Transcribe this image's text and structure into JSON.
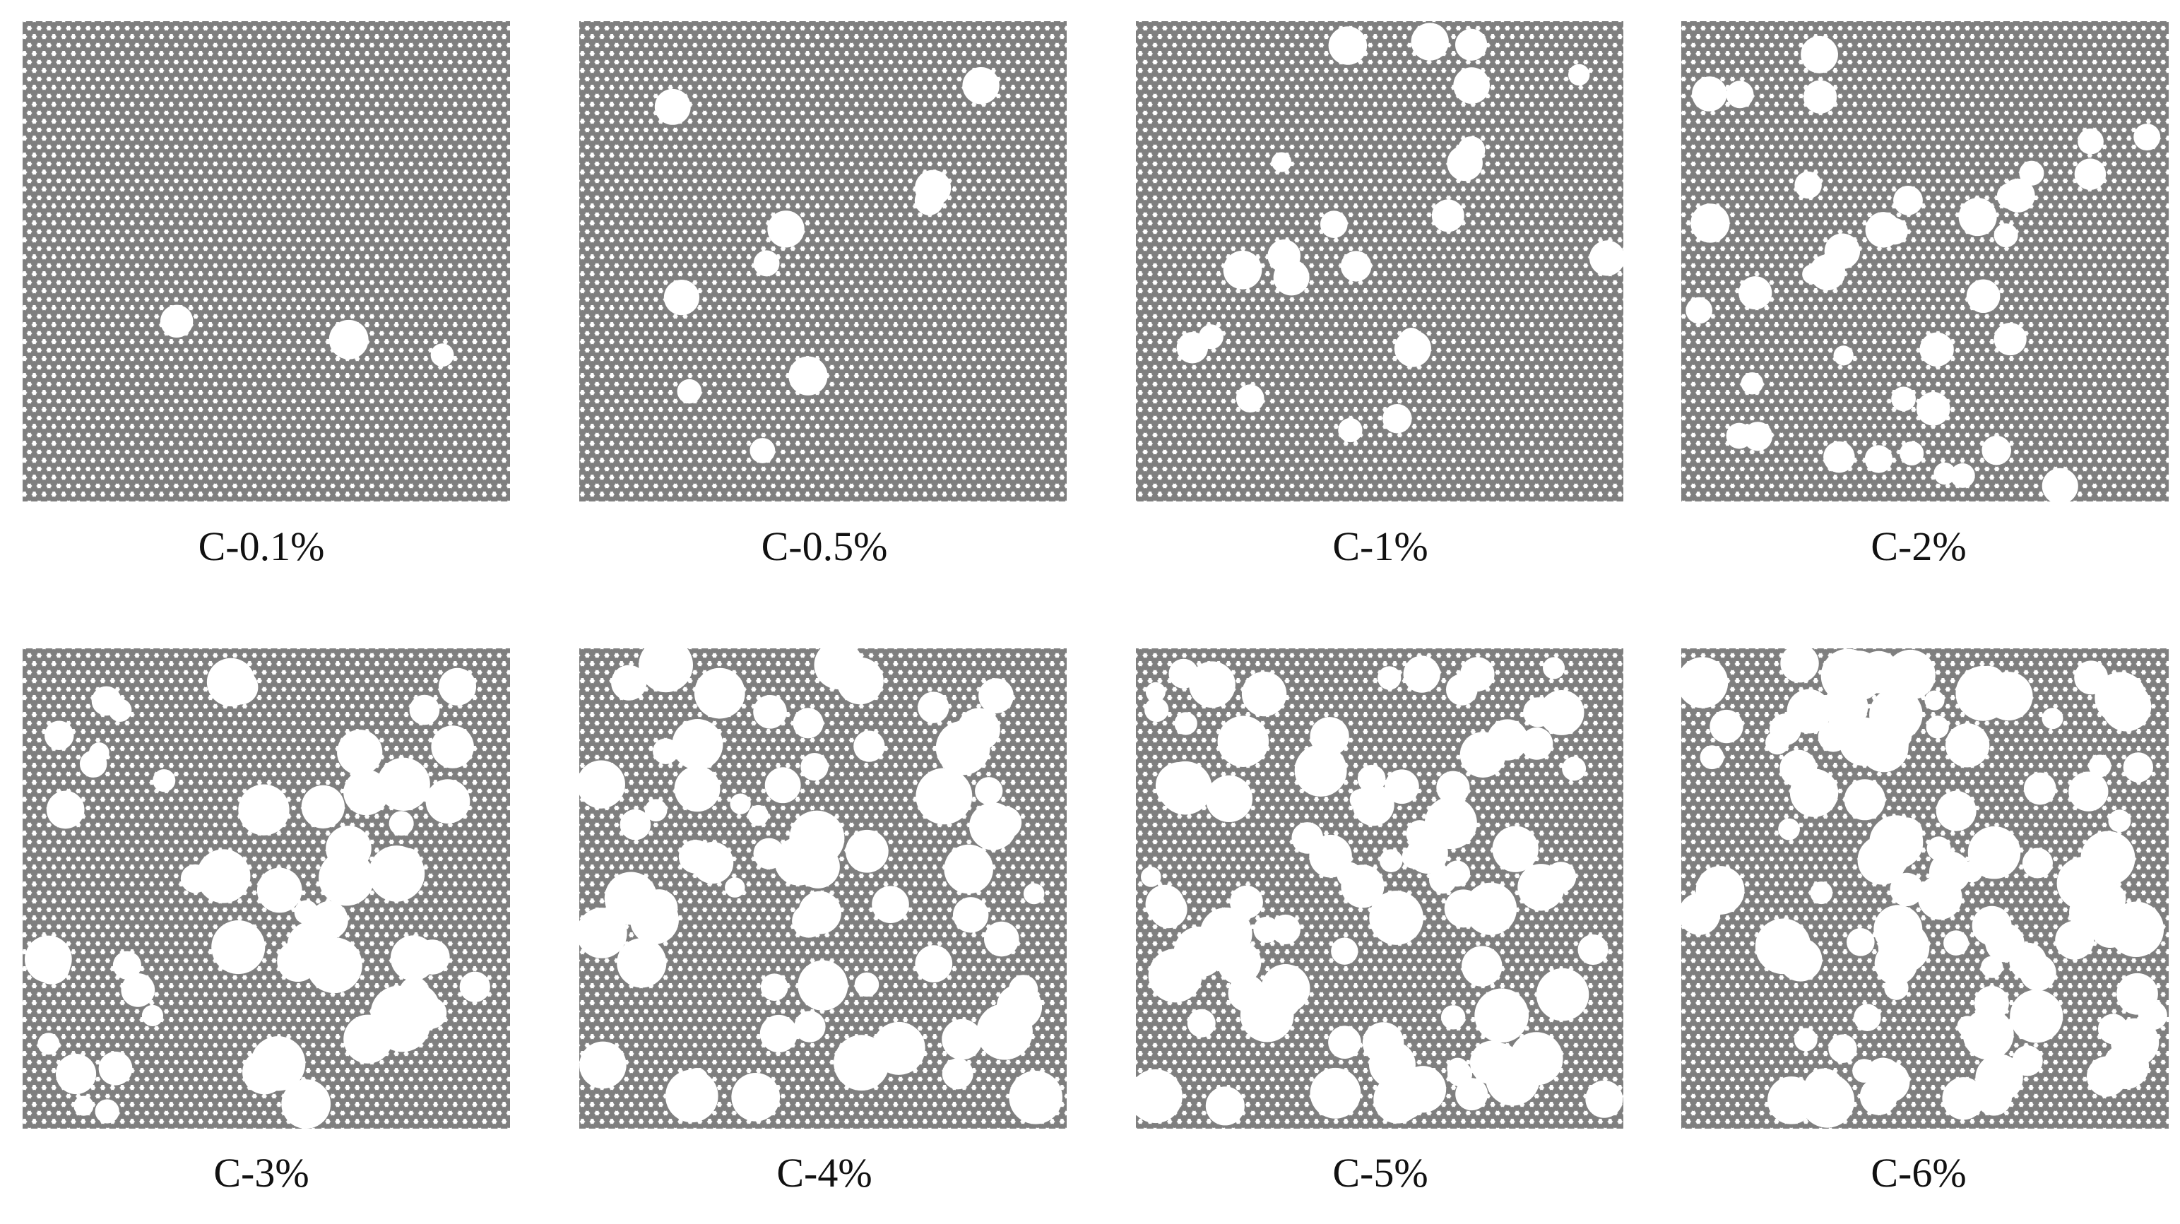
{
  "panels": [
    {
      "label": "C-0.1%"
    },
    {
      "label": "C-0.5%"
    },
    {
      "label": "C-1%"
    },
    {
      "label": "C-2%"
    },
    {
      "label": "C-3%"
    },
    {
      "label": "C-4%"
    },
    {
      "label": "C-5%"
    },
    {
      "label": "C-6%"
    }
  ]
}
